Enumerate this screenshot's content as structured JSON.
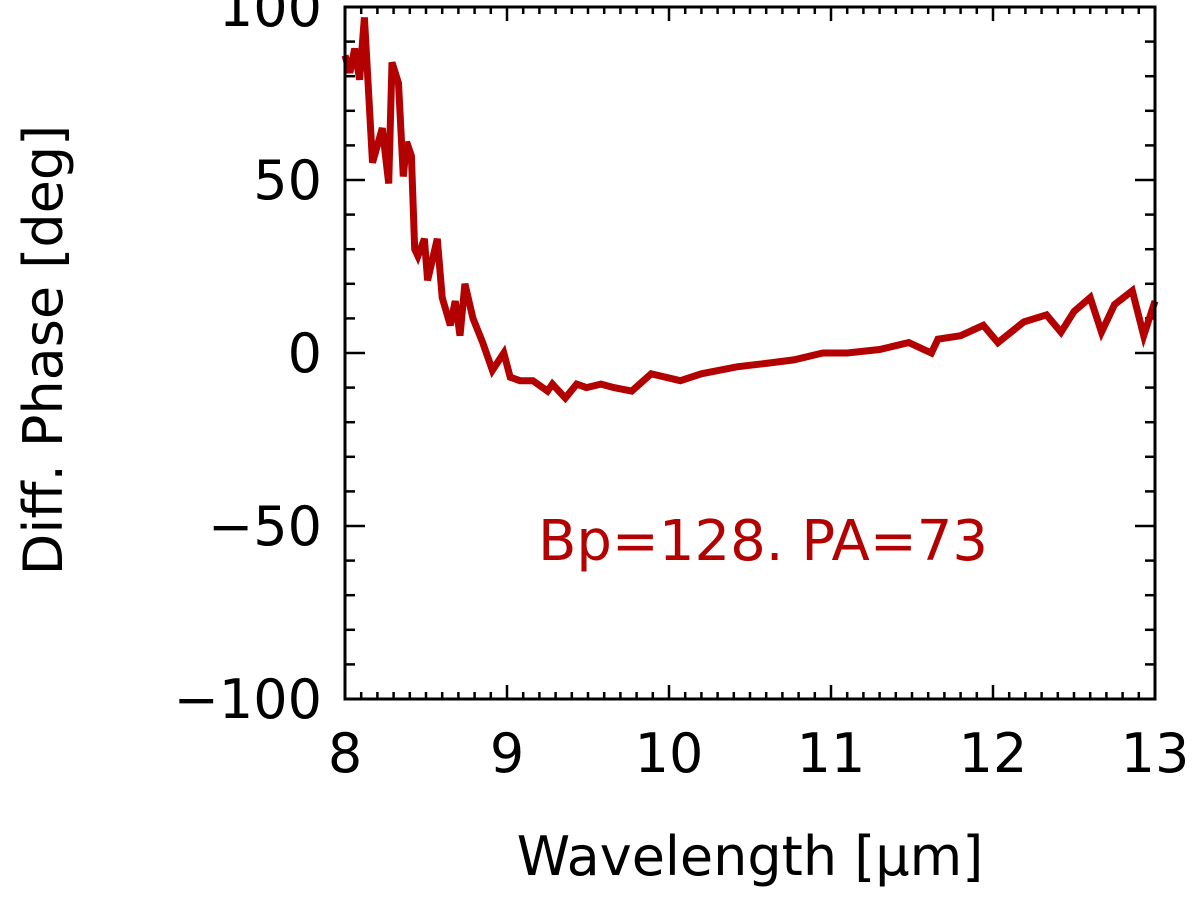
{
  "chart_data": {
    "type": "line",
    "title": "",
    "xlabel": "Wavelength [μm]",
    "ylabel": "Diff. Phase [deg]",
    "xlim": [
      8,
      13
    ],
    "ylim": [
      -100,
      100
    ],
    "xticks": [
      8,
      9,
      10,
      11,
      12,
      13
    ],
    "xtick_labels": [
      "8",
      "9",
      "10",
      "11",
      "12",
      "13"
    ],
    "yticks": [
      -100,
      -50,
      0,
      50,
      100
    ],
    "ytick_labels": [
      "−100",
      "−50",
      "0",
      "50",
      "100"
    ],
    "grid": false,
    "annotation": "Bp=128. PA=73",
    "colors": {
      "series": "#b30000",
      "annotation": "#b30000",
      "axes": "#000000"
    },
    "series": [
      {
        "x": [
          8.0,
          8.03,
          8.06,
          8.09,
          8.12,
          8.14,
          8.17,
          8.2,
          8.23,
          8.27,
          8.29,
          8.33,
          8.36,
          8.38,
          8.41,
          8.43,
          8.45,
          8.49,
          8.51,
          8.57,
          8.6,
          8.65,
          8.68,
          8.71,
          8.74,
          8.79,
          8.85,
          8.91,
          8.98,
          9.02,
          9.08,
          9.16,
          9.25,
          9.28,
          9.36,
          9.43,
          9.49,
          9.58,
          9.66,
          9.77,
          9.89,
          10.07,
          10.2,
          10.42,
          10.6,
          10.77,
          10.95,
          11.1,
          11.3,
          11.48,
          11.62,
          11.66,
          11.8,
          11.94,
          12.03,
          12.19,
          12.33,
          12.42,
          12.5,
          12.6,
          12.67,
          12.75,
          12.86,
          12.93,
          13.0
        ],
        "y": [
          86,
          81,
          88,
          79,
          97,
          80,
          55,
          60,
          65,
          49,
          84,
          78,
          51,
          61,
          57,
          30,
          28,
          33,
          21,
          33,
          16,
          8,
          15,
          5,
          20,
          10,
          3,
          -5,
          0,
          -7,
          -8,
          -8,
          -11,
          -9,
          -13,
          -9,
          -10,
          -9,
          -10,
          -11,
          -6,
          -8,
          -6,
          -4,
          -3,
          -2,
          0,
          0,
          1,
          3,
          0,
          4,
          5,
          8,
          3,
          9,
          11,
          6,
          12,
          16,
          6,
          14,
          18,
          5,
          15
        ]
      }
    ]
  }
}
